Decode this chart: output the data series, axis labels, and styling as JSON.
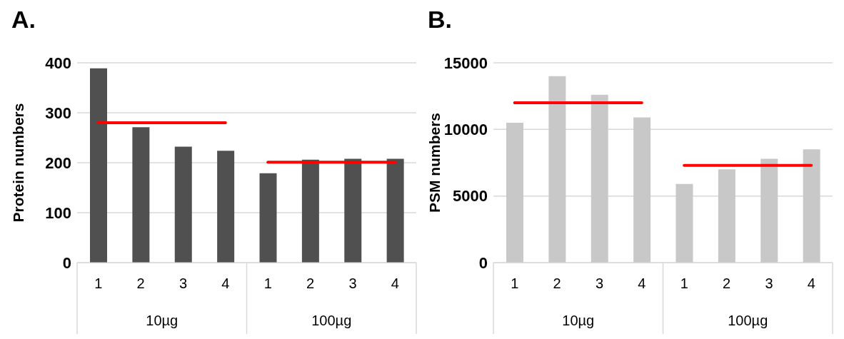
{
  "chart_data": [
    {
      "type": "bar",
      "title": "A.",
      "ylabel": "Protein numbers",
      "categories": [
        "1",
        "2",
        "3",
        "4",
        "1",
        "2",
        "3",
        "4"
      ],
      "series": [
        {
          "color": "#505050",
          "values": [
            389,
            271,
            232,
            224,
            179,
            206,
            208,
            208
          ]
        },
        {
          "type": "line",
          "color": "#ff0000",
          "values": [
            280,
            280,
            280,
            280,
            null,
            null,
            null,
            null
          ]
        },
        {
          "type": "line",
          "color": "#ff0000",
          "values": [
            null,
            null,
            null,
            null,
            201,
            201,
            201,
            201
          ]
        }
      ],
      "ylim": [
        0,
        400
      ],
      "yticks": [
        0,
        100,
        200,
        300,
        400
      ],
      "grid": "y",
      "marker": "none",
      "annotations": [
        "10µg",
        "100µg"
      ]
    },
    {
      "type": "bar",
      "title": "B.",
      "ylabel": "PSM numbers",
      "categories": [
        "1",
        "2",
        "3",
        "4",
        "1",
        "2",
        "3",
        "4"
      ],
      "series": [
        {
          "color": "#c8c8c8",
          "values": [
            10500,
            14000,
            12600,
            10900,
            5900,
            7000,
            7800,
            8500
          ]
        },
        {
          "type": "line",
          "color": "#ff0000",
          "values": [
            12000,
            12000,
            12000,
            12000,
            null,
            null,
            null,
            null
          ]
        },
        {
          "type": "line",
          "color": "#ff0000",
          "values": [
            null,
            null,
            null,
            null,
            7300,
            7300,
            7300,
            7300
          ]
        }
      ],
      "ylim": [
        0,
        15000
      ],
      "yticks": [
        0,
        5000,
        10000,
        15000
      ],
      "grid": "y",
      "marker": "none",
      "annotations": [
        "10µg",
        "100µg"
      ]
    }
  ]
}
